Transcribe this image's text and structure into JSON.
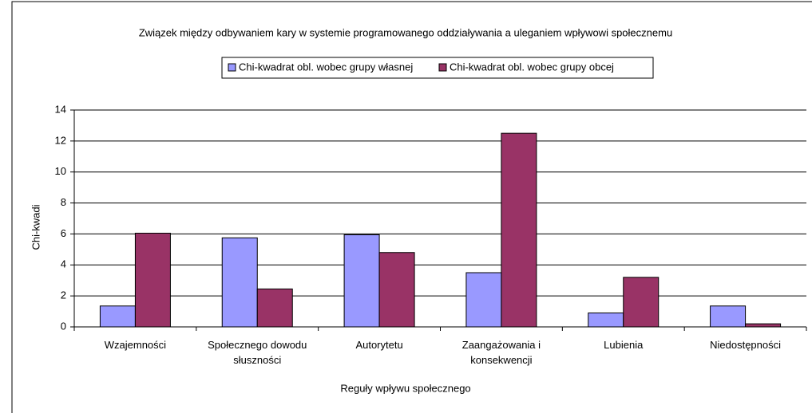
{
  "chart_data": {
    "type": "bar",
    "title": "Związek między odbywaniem kary w systemie programowanego oddziaływania a uleganiem wpływowi społecznemu",
    "x_label": "Reguły wpływu społecznego",
    "y_label": "Chi-kwadi",
    "categories": [
      "Wzajemności",
      "Społecznego dowodu słuszności",
      "Autorytetu",
      "Zaangażowania i konsekwencji",
      "Lubienia",
      "Niedostępności"
    ],
    "series": [
      {
        "name": "Chi-kwadrat obl. wobec grupy własnej",
        "color": "#9999ff",
        "values": [
          1.35,
          5.75,
          5.95,
          3.5,
          0.9,
          1.35
        ]
      },
      {
        "name": "Chi-kwadrat obl. wobec grupy obcej",
        "color": "#993366",
        "values": [
          6.05,
          2.45,
          4.8,
          12.5,
          3.2,
          0.2
        ]
      }
    ],
    "ylim": [
      0,
      14
    ],
    "yticks": [
      0,
      2,
      4,
      6,
      8,
      10,
      12,
      14
    ],
    "grid": true,
    "legend": "top"
  }
}
